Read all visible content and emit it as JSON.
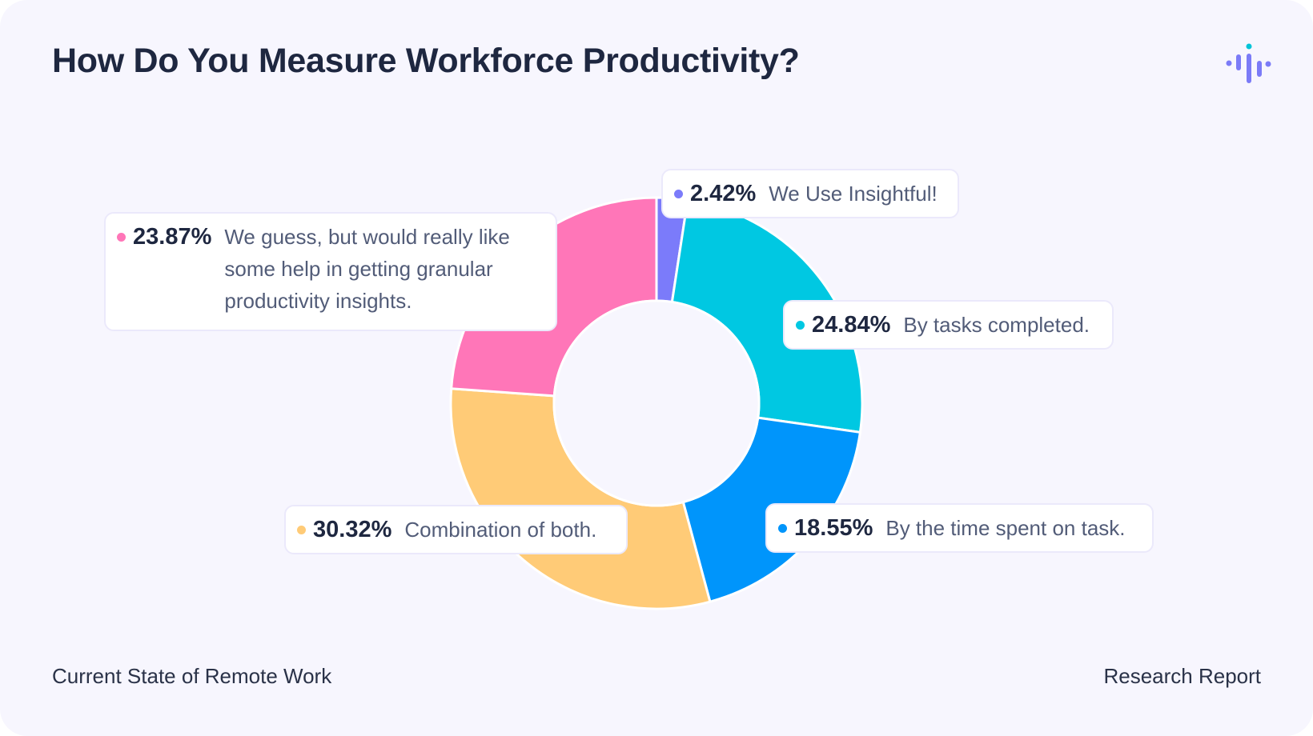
{
  "header": {
    "title": "How Do You Measure Workforce Productivity?",
    "logo_icon": "soundwave-logo-icon"
  },
  "footer": {
    "left": "Current State of Remote Work",
    "right": "Research Report"
  },
  "colors": {
    "background": "#f7f6fe",
    "title": "#1e2740",
    "label_text": "#525c78",
    "logo_primary": "#7b7bf7",
    "logo_accent": "#00c4d8"
  },
  "chart_data": {
    "type": "pie",
    "variant": "donut",
    "title": "How Do You Measure Workforce Productivity?",
    "start_angle": "12 o'clock",
    "direction": "clockwise",
    "slices": [
      {
        "label": "We Use Insightful!",
        "value": 2.42,
        "value_label": "2.42%",
        "color": "#7b7bfa"
      },
      {
        "label": "By tasks completed.",
        "value": 24.84,
        "value_label": "24.84%",
        "color": "#00c8e2"
      },
      {
        "label": "By the time spent on task.",
        "value": 18.55,
        "value_label": "18.55%",
        "color": "#0095fb"
      },
      {
        "label": "Combination of both.",
        "value": 30.32,
        "value_label": "30.32%",
        "color": "#ffcb77"
      },
      {
        "label": "We guess, but would really like some help in getting granular productivity insights.",
        "value": 23.87,
        "value_label": "23.87%",
        "color": "#ff76b8"
      }
    ]
  }
}
